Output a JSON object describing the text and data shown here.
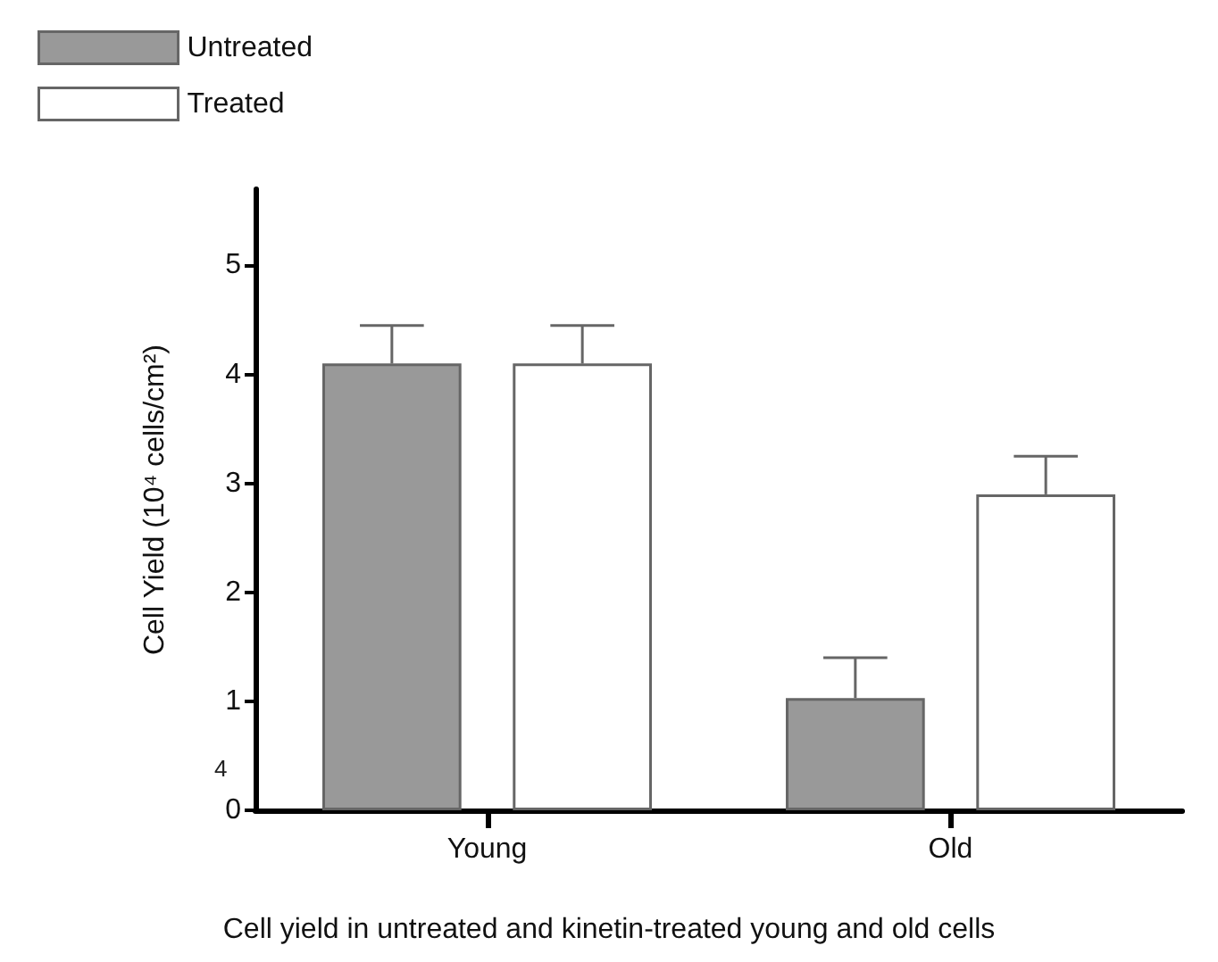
{
  "chart_data": {
    "type": "bar",
    "ylabel": "Cell Yield (10⁴ cells/cm²)",
    "categories": [
      "Young",
      "Old"
    ],
    "series": [
      {
        "name": "Untreated",
        "color": "#999999",
        "values": [
          4.1,
          1.03
        ],
        "errors": [
          [
            4.1,
            4.45
          ],
          [
            1.03,
            1.4
          ]
        ]
      },
      {
        "name": "Treated",
        "color": "#ffffff",
        "values": [
          4.1,
          2.9
        ],
        "errors": [
          [
            4.1,
            4.45
          ],
          [
            2.9,
            3.25
          ]
        ]
      }
    ],
    "ylim": [
      0,
      5.7
    ],
    "yticks": [
      0,
      1,
      2,
      3,
      4,
      5
    ],
    "grid": false,
    "legend": "top left",
    "annotations": [
      "4",
      "Cell yield in untreated and kinetin-treated young and old cells"
    ]
  }
}
